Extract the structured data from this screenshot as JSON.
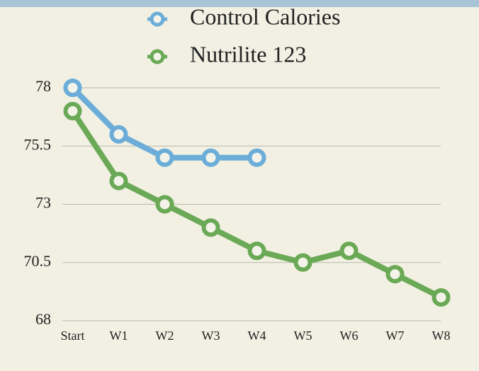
{
  "chart_data": {
    "type": "line",
    "categories": [
      "Start",
      "W1",
      "W2",
      "W3",
      "W4",
      "W5",
      "W6",
      "W7",
      "W8"
    ],
    "series": [
      {
        "name": "Control Calories",
        "color": "#6badd8",
        "values": [
          78,
          76,
          75,
          75,
          75,
          null,
          null,
          null,
          null
        ]
      },
      {
        "name": "Nutrilite 123",
        "color": "#6aa955",
        "values": [
          77,
          74,
          73,
          72,
          71,
          70.5,
          71,
          70,
          69
        ]
      }
    ],
    "ylim": [
      68,
      78
    ],
    "yticks": [
      68,
      70.5,
      73,
      75.5,
      78
    ],
    "grid": true,
    "legend": "top"
  }
}
